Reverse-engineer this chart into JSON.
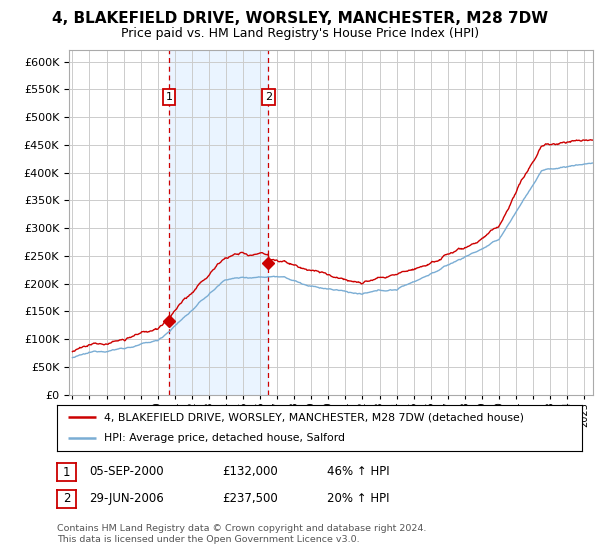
{
  "title": "4, BLAKEFIELD DRIVE, WORSLEY, MANCHESTER, M28 7DW",
  "subtitle": "Price paid vs. HM Land Registry's House Price Index (HPI)",
  "title_fontsize": 11,
  "subtitle_fontsize": 9,
  "background_color": "#ffffff",
  "plot_bg_color": "#ffffff",
  "grid_color": "#cccccc",
  "sale1_date": 2000.67,
  "sale1_price": 132000,
  "sale1_label": "1",
  "sale2_date": 2006.49,
  "sale2_price": 237500,
  "sale2_label": "2",
  "yticks": [
    0,
    50000,
    100000,
    150000,
    200000,
    250000,
    300000,
    350000,
    400000,
    450000,
    500000,
    550000,
    600000
  ],
  "xlim": [
    1994.8,
    2025.5
  ],
  "ylim": [
    0,
    620000
  ],
  "legend1_label": "4, BLAKEFIELD DRIVE, WORSLEY, MANCHESTER, M28 7DW (detached house)",
  "legend2_label": "HPI: Average price, detached house, Salford",
  "footer1": "Contains HM Land Registry data © Crown copyright and database right 2024.",
  "footer2": "This data is licensed under the Open Government Licence v3.0.",
  "table_row1": [
    "1",
    "05-SEP-2000",
    "£132,000",
    "46% ↑ HPI"
  ],
  "table_row2": [
    "2",
    "29-JUN-2006",
    "£237,500",
    "20% ↑ HPI"
  ],
  "red_color": "#cc0000",
  "blue_color": "#7aadd4",
  "vline_color": "#cc0000",
  "shade_color": "#ddeeff",
  "n_points": 700
}
